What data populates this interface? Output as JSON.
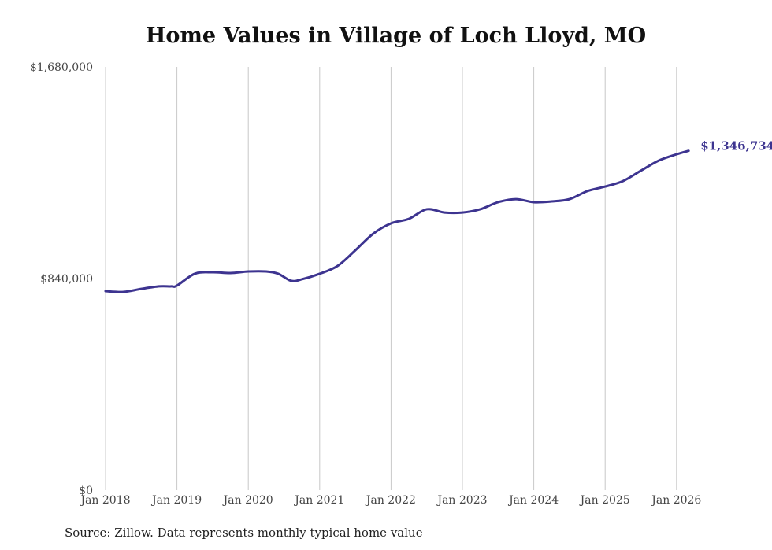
{
  "title": "Home Values in Village of Loch Lloyd, MO",
  "source": "Source: Zillow. Data represents monthly typical home value",
  "colors": {
    "line": "#3d3490",
    "grid": "#c8c8c8"
  },
  "chart_data": {
    "type": "line",
    "title": "Home Values in Village of Loch Lloyd, MO",
    "xlabel": "",
    "ylabel": "",
    "ylim": [
      0,
      1680000
    ],
    "xlim": [
      2018,
      2026.17
    ],
    "grid": "vertical",
    "yticks": [
      {
        "value": 0,
        "label": "$0"
      },
      {
        "value": 840000,
        "label": "$840,000"
      },
      {
        "value": 1680000,
        "label": "$1,680,000"
      }
    ],
    "xticks": [
      {
        "value": 2018,
        "label": "Jan 2018"
      },
      {
        "value": 2019,
        "label": "Jan 2019"
      },
      {
        "value": 2020,
        "label": "Jan 2020"
      },
      {
        "value": 2021,
        "label": "Jan 2021"
      },
      {
        "value": 2022,
        "label": "Jan 2022"
      },
      {
        "value": 2023,
        "label": "Jan 2023"
      },
      {
        "value": 2024,
        "label": "Jan 2024"
      },
      {
        "value": 2025,
        "label": "Jan 2025"
      },
      {
        "value": 2026,
        "label": "Jan 2026"
      }
    ],
    "series": [
      {
        "name": "Typical home value",
        "x": [
          2018.0,
          2018.25,
          2018.5,
          2018.75,
          2018.92,
          2019.0,
          2019.25,
          2019.5,
          2019.75,
          2020.0,
          2020.25,
          2020.42,
          2020.6,
          2020.75,
          2021.0,
          2021.25,
          2021.5,
          2021.75,
          2022.0,
          2022.25,
          2022.5,
          2022.75,
          2023.0,
          2023.25,
          2023.5,
          2023.75,
          2024.0,
          2024.25,
          2024.5,
          2024.75,
          2025.0,
          2025.25,
          2025.5,
          2025.75,
          2026.0,
          2026.17
        ],
        "values": [
          790000,
          787000,
          799000,
          809000,
          809000,
          812000,
          859000,
          865000,
          862000,
          868000,
          868000,
          859000,
          831000,
          837000,
          859000,
          890000,
          952000,
          1018000,
          1059000,
          1077000,
          1115000,
          1102000,
          1102000,
          1115000,
          1143000,
          1155000,
          1143000,
          1146000,
          1155000,
          1187000,
          1205000,
          1227000,
          1268000,
          1308000,
          1333000,
          1346734
        ]
      }
    ],
    "end_label": "$1,346,734"
  }
}
